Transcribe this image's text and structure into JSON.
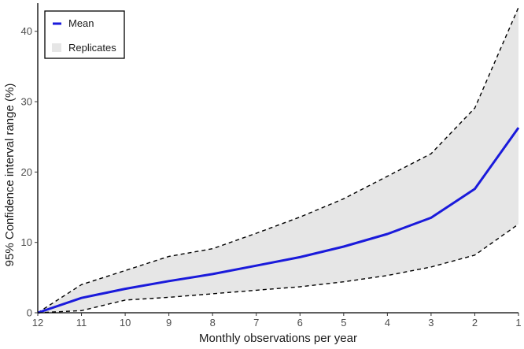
{
  "chart_data": {
    "type": "line",
    "title": "",
    "xlabel": "Monthly observations per year",
    "ylabel": "95% Confidence interval range (%)",
    "x": [
      12,
      11,
      10,
      9,
      8,
      7,
      6,
      5,
      4,
      3,
      2,
      1
    ],
    "x_reversed": true,
    "xlim": [
      12,
      1
    ],
    "ylim": [
      0,
      44
    ],
    "yticks": [
      0,
      10,
      20,
      30,
      40
    ],
    "grid": false,
    "legend_position": "top-left",
    "series": [
      {
        "name": "Mean",
        "style": "solid",
        "color": "#1a1adb",
        "values": [
          0,
          2.1,
          3.4,
          4.5,
          5.5,
          6.7,
          7.9,
          9.4,
          11.2,
          13.5,
          17.6,
          26.3
        ]
      },
      {
        "name": "Replicates upper bound",
        "style": "dashed",
        "color": "#000000",
        "values": [
          0,
          4.0,
          6.0,
          8.0,
          9.1,
          11.3,
          13.6,
          16.2,
          19.4,
          22.6,
          29.1,
          43.4
        ]
      },
      {
        "name": "Replicates lower bound",
        "style": "dashed",
        "color": "#000000",
        "values": [
          0,
          0.3,
          1.8,
          2.2,
          2.7,
          3.2,
          3.7,
          4.4,
          5.3,
          6.5,
          8.2,
          12.6
        ]
      }
    ],
    "band": {
      "name": "Replicates",
      "color": "#e6e6e6",
      "upper_series": "Replicates upper bound",
      "lower_series": "Replicates lower bound"
    },
    "legend": [
      {
        "label": "Mean",
        "type": "line",
        "color": "#1a1adb"
      },
      {
        "label": "Replicates",
        "type": "fill",
        "color": "#e6e6e6"
      }
    ]
  }
}
